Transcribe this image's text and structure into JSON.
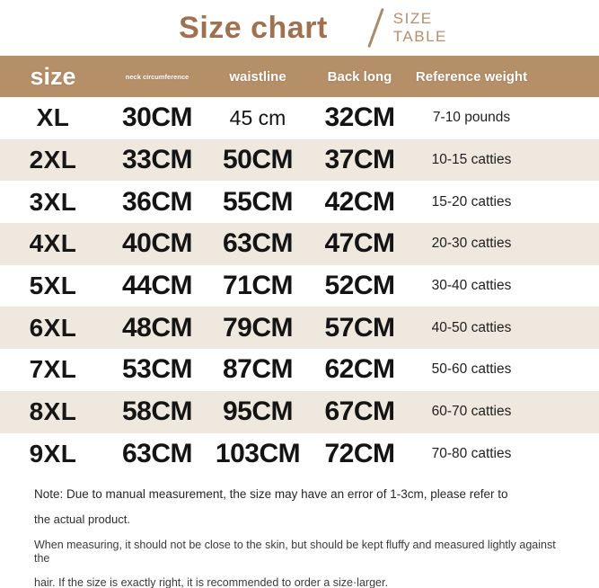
{
  "header": {
    "title": "Size chart",
    "subtitle_line1": "SIZE",
    "subtitle_line2": "TABLE"
  },
  "table": {
    "columns": [
      "size",
      "neck circumference",
      "waistline",
      "Back long",
      "Reference weight"
    ],
    "rows": [
      {
        "size": "XL",
        "neck": "30CM",
        "waistline": "45 cm",
        "back_long": "32CM",
        "reference_weight": "7-10 pounds"
      },
      {
        "size": "2XL",
        "neck": "33CM",
        "waistline": "50CM",
        "back_long": "37CM",
        "reference_weight": "10-15 catties"
      },
      {
        "size": "3XL",
        "neck": "36CM",
        "waistline": "55CM",
        "back_long": "42CM",
        "reference_weight": "15-20 catties"
      },
      {
        "size": "4XL",
        "neck": "40CM",
        "waistline": "63CM",
        "back_long": "47CM",
        "reference_weight": "20-30 catties"
      },
      {
        "size": "5XL",
        "neck": "44CM",
        "waistline": "71CM",
        "back_long": "52CM",
        "reference_weight": "30-40 catties"
      },
      {
        "size": "6XL",
        "neck": "48CM",
        "waistline": "79CM",
        "back_long": "57CM",
        "reference_weight": "40-50 catties"
      },
      {
        "size": "7XL",
        "neck": "53CM",
        "waistline": "87CM",
        "back_long": "62CM",
        "reference_weight": "50-60 catties"
      },
      {
        "size": "8XL",
        "neck": "58CM",
        "waistline": "95CM",
        "back_long": "67CM",
        "reference_weight": "60-70 catties"
      },
      {
        "size": "9XL",
        "neck": "63CM",
        "waistline": "103CM",
        "back_long": "72CM",
        "reference_weight": "70-80 catties"
      }
    ]
  },
  "notes": {
    "line1": "Note: Due to manual measurement, the size may have an error of 1-3cm, please refer to",
    "line2": "the actual product.",
    "line3": "When measuring, it should not be close to the skin, but should be kept fluffy and measured lightly against the",
    "line4": "hair. If the size is exactly right, it is recommended to order a size·larger."
  },
  "colors": {
    "title_brown": "#9e7150",
    "subtitle_tan": "#b2906f",
    "header_bg": "#b58f68",
    "header_text": "#ffffff",
    "row_alt_bg": "#efe8de",
    "value_text": "#141414",
    "note_text": "#2f2f2f"
  }
}
